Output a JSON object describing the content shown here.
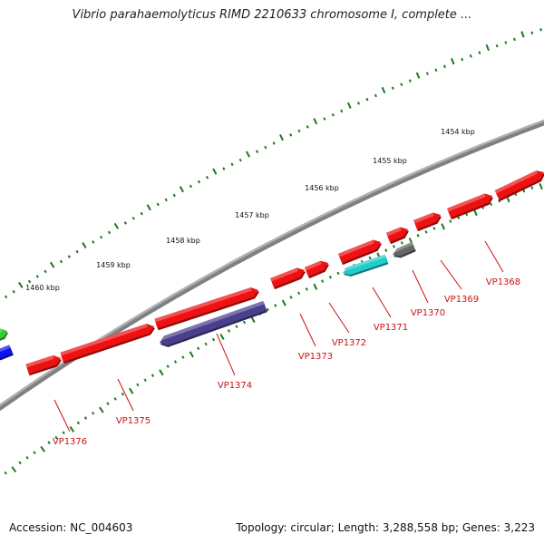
{
  "title": "Vibrio parahaemolyticus RIMD 2210633 chromosome I, complete ...",
  "footer": {
    "accession": "Accession: NC_004603",
    "summary": "Topology: circular; Length: 3,288,558 bp; Genes: 3,223"
  },
  "scale": {
    "unit": "kbp",
    "ticks": [
      {
        "kbp": 1454,
        "label": "1454 kbp"
      },
      {
        "kbp": 1455,
        "label": "1455 kbp"
      },
      {
        "kbp": 1456,
        "label": "1456 kbp"
      },
      {
        "kbp": 1457,
        "label": "1457 kbp"
      },
      {
        "kbp": 1458,
        "label": "1458 kbp"
      },
      {
        "kbp": 1459,
        "label": "1459 kbp"
      },
      {
        "kbp": 1460,
        "label": "1460 kbp"
      }
    ]
  },
  "colors": {
    "backbone": "#808080",
    "tick": "#1a7a1a",
    "gene_red": "#ee1111",
    "gene_cyan": "#22cccc",
    "gene_purple": "#4a3f8c",
    "gene_gray": "#666666",
    "gene_green": "#33cc33",
    "gene_blue": "#1111ee",
    "label": "#cc1111"
  },
  "genes": [
    {
      "label": "VP1368",
      "color": "gene_red",
      "strand": "+",
      "track": "outer"
    },
    {
      "label": "VP1369",
      "color": "gene_red",
      "strand": "+",
      "track": "outer"
    },
    {
      "label": "VP1370",
      "color": "gene_gray",
      "strand": "-",
      "track": "inner"
    },
    {
      "label": "VP1371",
      "color": "gene_cyan",
      "strand": "-",
      "track": "inner"
    },
    {
      "label": "VP1372",
      "color": "gene_red",
      "strand": "+",
      "track": "outer"
    },
    {
      "label": "VP1373",
      "color": "gene_red",
      "strand": "+",
      "track": "outer"
    },
    {
      "label": "VP1374",
      "color": "gene_purple",
      "strand": "-",
      "track": "inner"
    },
    {
      "label": "VP1375",
      "color": "gene_red",
      "strand": "+",
      "track": "outer"
    },
    {
      "label": "VP1376",
      "color": "gene_red",
      "strand": "+",
      "track": "outer"
    }
  ],
  "unlabeled_genes": [
    {
      "color": "gene_red",
      "strand": "+",
      "track": "outer"
    },
    {
      "color": "gene_red",
      "strand": "+",
      "track": "outer"
    },
    {
      "color": "gene_green",
      "strand": "+",
      "track": "outer"
    },
    {
      "color": "gene_blue",
      "strand": "-",
      "track": "outer"
    }
  ]
}
